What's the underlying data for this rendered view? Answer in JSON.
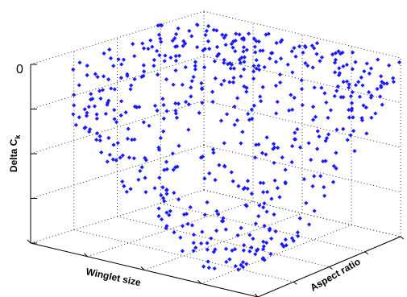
{
  "chart_data": {
    "type": "scatter",
    "title": "",
    "xlabel": "Winglet size",
    "ylabel": "Aspect ratio",
    "zlabel": "Delta C",
    "zlabel_subscript": "k",
    "z_tick_labels": [
      "0"
    ],
    "grid": true,
    "marker": "diamond",
    "marker_color": "#1a1aff",
    "points_note": "approx. 600 scattered points forming a bowl-shaped cloud",
    "series": [
      {
        "name": "",
        "points": [
          [
            0.05,
            0.95,
            0.92
          ],
          [
            0.08,
            0.92,
            0.88
          ],
          [
            0.1,
            0.9,
            0.85
          ],
          [
            0.12,
            0.96,
            0.9
          ],
          [
            0.15,
            0.88,
            0.83
          ],
          [
            0.05,
            0.85,
            0.95
          ],
          [
            0.07,
            0.8,
            0.9
          ],
          [
            0.1,
            0.82,
            0.8
          ],
          [
            0.13,
            0.78,
            0.78
          ],
          [
            0.18,
            0.85,
            0.86
          ],
          [
            0.2,
            0.92,
            0.92
          ],
          [
            0.22,
            0.97,
            0.95
          ],
          [
            0.25,
            0.9,
            0.88
          ],
          [
            0.28,
            0.95,
            0.93
          ],
          [
            0.3,
            0.98,
            0.97
          ],
          [
            0.04,
            0.7,
            0.93
          ],
          [
            0.06,
            0.65,
            0.9
          ],
          [
            0.09,
            0.72,
            0.86
          ],
          [
            0.12,
            0.68,
            0.8
          ],
          [
            0.16,
            0.74,
            0.82
          ],
          [
            0.2,
            0.8,
            0.84
          ],
          [
            0.24,
            0.84,
            0.8
          ],
          [
            0.27,
            0.88,
            0.86
          ],
          [
            0.32,
            0.92,
            0.9
          ],
          [
            0.35,
            0.96,
            0.94
          ],
          [
            0.03,
            0.55,
            0.96
          ],
          [
            0.06,
            0.52,
            0.91
          ],
          [
            0.1,
            0.58,
            0.85
          ],
          [
            0.14,
            0.6,
            0.78
          ],
          [
            0.18,
            0.64,
            0.75
          ],
          [
            0.22,
            0.7,
            0.72
          ],
          [
            0.26,
            0.76,
            0.74
          ],
          [
            0.3,
            0.82,
            0.78
          ],
          [
            0.35,
            0.86,
            0.82
          ],
          [
            0.4,
            0.92,
            0.88
          ],
          [
            0.42,
            0.97,
            0.93
          ],
          [
            0.45,
            0.94,
            0.9
          ],
          [
            0.5,
            0.98,
            0.95
          ],
          [
            0.55,
            0.96,
            0.92
          ],
          [
            0.6,
            0.99,
            0.96
          ]
        ]
      }
    ]
  }
}
